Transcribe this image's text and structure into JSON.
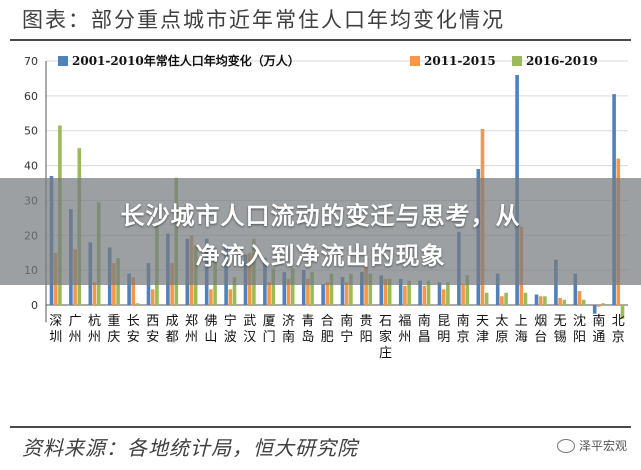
{
  "header": {
    "title": "图表：部分重点城市近年常住人口年均变化情况"
  },
  "footer": {
    "source": "资料来源：各地统计局，恒大研究院",
    "watermark": "泽平宏观"
  },
  "overlay": {
    "line1": "长沙城市人口流动的变迁与思考，从",
    "line2": "净流入到净流出的现象"
  },
  "colors": {
    "s1": "#4f81bd",
    "s2": "#f79646",
    "s3": "#9bbb59",
    "axis": "#555555",
    "grid": "#d9d9d9"
  },
  "chart_data": {
    "type": "bar",
    "title": "图表：部分重点城市近年常住人口年均变化情况",
    "xlabel": "",
    "ylabel": "",
    "ylim": [
      -5,
      70
    ],
    "yticks": [
      0,
      10,
      20,
      30,
      40,
      50,
      60,
      70
    ],
    "grid": true,
    "legend_position": "top",
    "categories": [
      "深圳",
      "广州",
      "杭州",
      "重庆",
      "长安",
      "西安",
      "成都",
      "郑州",
      "佛山",
      "宁波",
      "武汉",
      "厦门",
      "济南",
      "青岛",
      "合肥",
      "南宁",
      "贵阳",
      "石家庄",
      "福州",
      "南昌",
      "昆明",
      "南京",
      "天津",
      "太原",
      "上海",
      "烟台",
      "无锡",
      "沈阳",
      "南通",
      "北京"
    ],
    "series": [
      {
        "name": "2001-2010年常住人口年均变化（万人）",
        "values": [
          37,
          27.5,
          18,
          16.5,
          9,
          12,
          20.5,
          19,
          19,
          16.5,
          14.5,
          13.5,
          9.5,
          10,
          6,
          8,
          9.5,
          8.5,
          7.5,
          7,
          6.5,
          21,
          39,
          9,
          66,
          3,
          13,
          9,
          -2.5,
          60.5
        ]
      },
      {
        "name": "2011-2015",
        "values": [
          15,
          16,
          6.5,
          12,
          8,
          4.5,
          12,
          20,
          4.5,
          4.5,
          15,
          6.5,
          7.5,
          7.5,
          6.5,
          6.5,
          11,
          7.5,
          5.5,
          5.5,
          4.5,
          6,
          50.5,
          2.5,
          22.5,
          2.5,
          2,
          4,
          -0.5,
          42
        ]
      },
      {
        "name": "2016-2019",
        "values": [
          51.5,
          45,
          29.5,
          13.5,
          0.5,
          23.5,
          36.5,
          17,
          16.5,
          8,
          19,
          10.5,
          10.5,
          9.5,
          9,
          9,
          9,
          7.5,
          7,
          7,
          6.5,
          8.5,
          3.5,
          3.5,
          3.5,
          2.5,
          1.5,
          1.5,
          0.5,
          -4
        ]
      }
    ]
  }
}
